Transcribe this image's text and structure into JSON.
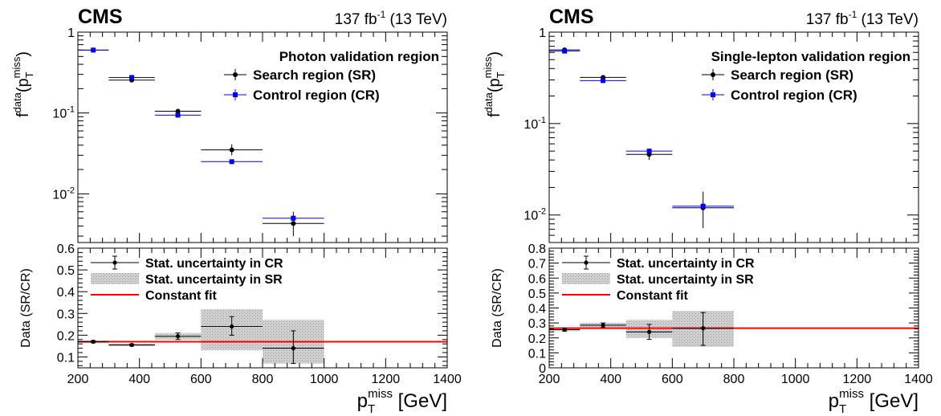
{
  "chart_data": [
    {
      "type": "scatter",
      "experiment_label": "CMS",
      "lumi_label": "137 fb⁻¹ (13 TeV)",
      "lumi_main": "137 fb",
      "lumi_sup": "-1",
      "lumi_tail": " (13 TeV)",
      "region_title": "Photon validation region",
      "top_panel": {
        "ylabel": "f^data(p_T^miss)",
        "ylabel_main": "f",
        "ylabel_sup": "data",
        "ylabel_paren": "(p",
        "ylabel_sub": "T",
        "ylabel_sup2": "miss",
        "ylabel_close": ")",
        "yscale": "log",
        "ylim": [
          0.0025,
          1
        ],
        "ytick_labels": [
          {
            "value": 1,
            "main": "1",
            "exp": ""
          },
          {
            "value": 0.1,
            "main": "10",
            "exp": "-1"
          },
          {
            "value": 0.01,
            "main": "10",
            "exp": "-2"
          }
        ],
        "legend": [
          {
            "label": "Search region (SR)",
            "color": "#000000",
            "marker": "circle"
          },
          {
            "label": "Control region (CR)",
            "color": "#0000ff",
            "marker": "square"
          }
        ],
        "series": [
          {
            "name": "Search region (SR)",
            "color": "#000000",
            "marker": "circle",
            "points": [
              {
                "x": 250,
                "xlo": 200,
                "xhi": 300,
                "y": 0.6,
                "ylo": 0.58,
                "yhi": 0.62
              },
              {
                "x": 375,
                "xlo": 300,
                "xhi": 450,
                "y": 0.255,
                "ylo": 0.245,
                "yhi": 0.265
              },
              {
                "x": 525,
                "xlo": 450,
                "xhi": 600,
                "y": 0.105,
                "ylo": 0.098,
                "yhi": 0.112
              },
              {
                "x": 700,
                "xlo": 600,
                "xhi": 800,
                "y": 0.035,
                "ylo": 0.03,
                "yhi": 0.041
              },
              {
                "x": 900,
                "xlo": 800,
                "xhi": 1000,
                "y": 0.0043,
                "ylo": 0.003,
                "yhi": 0.006
              }
            ]
          },
          {
            "name": "Control region (CR)",
            "color": "#0000ff",
            "marker": "square",
            "points": [
              {
                "x": 250,
                "xlo": 200,
                "xhi": 300,
                "y": 0.6,
                "ylo": 0.59,
                "yhi": 0.61
              },
              {
                "x": 375,
                "xlo": 300,
                "xhi": 450,
                "y": 0.275,
                "ylo": 0.27,
                "yhi": 0.28
              },
              {
                "x": 525,
                "xlo": 450,
                "xhi": 600,
                "y": 0.094,
                "ylo": 0.092,
                "yhi": 0.096
              },
              {
                "x": 700,
                "xlo": 600,
                "xhi": 800,
                "y": 0.025,
                "ylo": 0.024,
                "yhi": 0.026
              },
              {
                "x": 900,
                "xlo": 800,
                "xhi": 1000,
                "y": 0.005,
                "ylo": 0.0046,
                "yhi": 0.0054
              }
            ]
          }
        ]
      },
      "bottom_panel": {
        "ylabel": "Data (SR/CR)",
        "ylim": [
          0.05,
          0.6
        ],
        "yticks": [
          0.1,
          0.2,
          0.3,
          0.4,
          0.5,
          0.6
        ],
        "ytick_labels": [
          "0.1",
          "0.2",
          "0.3",
          "0.4",
          "0.5",
          "0.6"
        ],
        "legend": [
          {
            "label": "Stat. uncertainty in CR",
            "kind": "errorbar",
            "color": "#000000"
          },
          {
            "label": "Stat. uncertainty in SR",
            "kind": "band",
            "color": "#a0a0a0"
          },
          {
            "label": "Constant fit",
            "kind": "line",
            "color": "#ff0000"
          }
        ],
        "constant_fit": 0.17,
        "ratio_points": [
          {
            "x": 250,
            "xlo": 200,
            "xhi": 300,
            "y": 0.17,
            "ylo": 0.165,
            "yhi": 0.175,
            "band_lo": 0.165,
            "band_hi": 0.175
          },
          {
            "x": 375,
            "xlo": 300,
            "xhi": 450,
            "y": 0.155,
            "ylo": 0.15,
            "yhi": 0.16,
            "band_lo": 0.15,
            "band_hi": 0.16
          },
          {
            "x": 525,
            "xlo": 450,
            "xhi": 600,
            "y": 0.195,
            "ylo": 0.18,
            "yhi": 0.21,
            "band_lo": 0.18,
            "band_hi": 0.21
          },
          {
            "x": 700,
            "xlo": 600,
            "xhi": 800,
            "y": 0.24,
            "ylo": 0.2,
            "yhi": 0.285,
            "band_lo": 0.13,
            "band_hi": 0.32
          },
          {
            "x": 900,
            "xlo": 800,
            "xhi": 1000,
            "y": 0.14,
            "ylo": 0.07,
            "yhi": 0.22,
            "band_lo": 0.07,
            "band_hi": 0.27
          }
        ]
      },
      "x_axis": {
        "xlabel": "p_T^miss [GeV]",
        "xlabel_main": "p",
        "xlabel_sub": "T",
        "xlabel_sup": "miss",
        "xlabel_unit": " [GeV]",
        "xlim": [
          200,
          1400
        ],
        "xticks": [
          200,
          400,
          600,
          800,
          1000,
          1200,
          1400
        ],
        "xtick_labels": [
          "200",
          "400",
          "600",
          "800",
          "1000",
          "1200",
          "1400"
        ]
      }
    },
    {
      "type": "scatter",
      "experiment_label": "CMS",
      "lumi_label": "137 fb⁻¹ (13 TeV)",
      "lumi_main": "137 fb",
      "lumi_sup": "-1",
      "lumi_tail": " (13 TeV)",
      "region_title": "Single-lepton validation region",
      "top_panel": {
        "ylabel": "f^data(p_T^miss)",
        "ylabel_main": "f",
        "ylabel_sup": "data",
        "ylabel_paren": "(p",
        "ylabel_sub": "T",
        "ylabel_sup2": "miss",
        "ylabel_close": ")",
        "yscale": "log",
        "ylim": [
          0.005,
          1
        ],
        "ytick_labels": [
          {
            "value": 1,
            "main": "1",
            "exp": ""
          },
          {
            "value": 0.1,
            "main": "10",
            "exp": "-1"
          },
          {
            "value": 0.01,
            "main": "10",
            "exp": "-2"
          }
        ],
        "legend": [
          {
            "label": "Search region (SR)",
            "color": "#000000",
            "marker": "circle"
          },
          {
            "label": "Control region (CR)",
            "color": "#0000ff",
            "marker": "square"
          }
        ],
        "series": [
          {
            "name": "Search region (SR)",
            "color": "#000000",
            "marker": "circle",
            "points": [
              {
                "x": 250,
                "xlo": 200,
                "xhi": 300,
                "y": 0.64,
                "ylo": 0.61,
                "yhi": 0.67
              },
              {
                "x": 375,
                "xlo": 300,
                "xhi": 450,
                "y": 0.32,
                "ylo": 0.305,
                "yhi": 0.335
              },
              {
                "x": 525,
                "xlo": 450,
                "xhi": 600,
                "y": 0.046,
                "ylo": 0.04,
                "yhi": 0.053
              },
              {
                "x": 700,
                "xlo": 600,
                "xhi": 800,
                "y": 0.012,
                "ylo": 0.0072,
                "yhi": 0.018
              }
            ]
          },
          {
            "name": "Control region (CR)",
            "color": "#0000ff",
            "marker": "square",
            "points": [
              {
                "x": 250,
                "xlo": 200,
                "xhi": 300,
                "y": 0.62,
                "ylo": 0.61,
                "yhi": 0.63
              },
              {
                "x": 375,
                "xlo": 300,
                "xhi": 450,
                "y": 0.295,
                "ylo": 0.29,
                "yhi": 0.3
              },
              {
                "x": 525,
                "xlo": 450,
                "xhi": 600,
                "y": 0.05,
                "ylo": 0.048,
                "yhi": 0.052
              },
              {
                "x": 700,
                "xlo": 600,
                "xhi": 800,
                "y": 0.0125,
                "ylo": 0.012,
                "yhi": 0.013
              }
            ]
          }
        ]
      },
      "bottom_panel": {
        "ylabel": "Data (SR/CR)",
        "ylim": [
          0,
          0.8
        ],
        "yticks": [
          0,
          0.1,
          0.2,
          0.3,
          0.4,
          0.5,
          0.6,
          0.7,
          0.8
        ],
        "ytick_labels": [
          "0",
          "0.1",
          "0.2",
          "0.3",
          "0.4",
          "0.5",
          "0.6",
          "0.7",
          "0.8"
        ],
        "legend": [
          {
            "label": "Stat. uncertainty in CR",
            "kind": "errorbar",
            "color": "#000000"
          },
          {
            "label": "Stat. uncertainty in SR",
            "kind": "band",
            "color": "#a0a0a0"
          },
          {
            "label": "Constant fit",
            "kind": "line",
            "color": "#ff0000"
          }
        ],
        "constant_fit": 0.265,
        "ratio_points": [
          {
            "x": 250,
            "xlo": 200,
            "xhi": 300,
            "y": 0.255,
            "ylo": 0.245,
            "yhi": 0.265,
            "band_lo": 0.245,
            "band_hi": 0.27
          },
          {
            "x": 375,
            "xlo": 300,
            "xhi": 450,
            "y": 0.285,
            "ylo": 0.27,
            "yhi": 0.3,
            "band_lo": 0.27,
            "band_hi": 0.3
          },
          {
            "x": 525,
            "xlo": 450,
            "xhi": 600,
            "y": 0.24,
            "ylo": 0.19,
            "yhi": 0.29,
            "band_lo": 0.2,
            "band_hi": 0.32
          },
          {
            "x": 700,
            "xlo": 600,
            "xhi": 800,
            "y": 0.265,
            "ylo": 0.15,
            "yhi": 0.37,
            "band_lo": 0.14,
            "band_hi": 0.38
          }
        ]
      },
      "x_axis": {
        "xlabel": "p_T^miss [GeV]",
        "xlabel_main": "p",
        "xlabel_sub": "T",
        "xlabel_sup": "miss",
        "xlabel_unit": " [GeV]",
        "xlim": [
          200,
          1400
        ],
        "xticks": [
          200,
          400,
          600,
          800,
          1000,
          1200,
          1400
        ],
        "xtick_labels": [
          "200",
          "400",
          "600",
          "800",
          "1000",
          "1200",
          "1400"
        ]
      }
    }
  ]
}
